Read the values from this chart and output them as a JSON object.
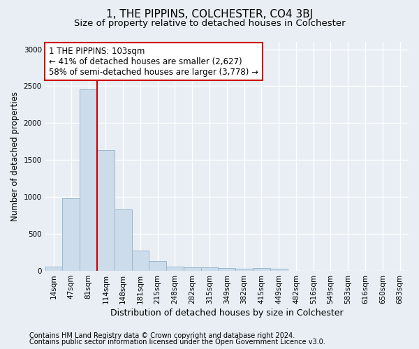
{
  "title": "1, THE PIPPINS, COLCHESTER, CO4 3BJ",
  "subtitle": "Size of property relative to detached houses in Colchester",
  "xlabel": "Distribution of detached houses by size in Colchester",
  "ylabel": "Number of detached properties",
  "bar_labels": [
    "14sqm",
    "47sqm",
    "81sqm",
    "114sqm",
    "148sqm",
    "181sqm",
    "215sqm",
    "248sqm",
    "282sqm",
    "315sqm",
    "349sqm",
    "382sqm",
    "415sqm",
    "449sqm",
    "482sqm",
    "516sqm",
    "549sqm",
    "583sqm",
    "616sqm",
    "650sqm",
    "683sqm"
  ],
  "bar_values": [
    62,
    980,
    2460,
    1640,
    830,
    270,
    130,
    60,
    50,
    50,
    40,
    30,
    40,
    30,
    0,
    5,
    0,
    0,
    0,
    0,
    0
  ],
  "bar_color": "#ccdceb",
  "bar_edge_color": "#9ab8d0",
  "ylim": [
    0,
    3100
  ],
  "yticks": [
    0,
    500,
    1000,
    1500,
    2000,
    2500,
    3000
  ],
  "annotation_box_text": "1 THE PIPPINS: 103sqm\n← 41% of detached houses are smaller (2,627)\n58% of semi-detached houses are larger (3,778) →",
  "annotation_box_color": "#ffffff",
  "annotation_box_edge_color": "#cc0000",
  "vline_color": "#cc0000",
  "footnote1": "Contains HM Land Registry data © Crown copyright and database right 2024.",
  "footnote2": "Contains public sector information licensed under the Open Government Licence v3.0.",
  "background_color": "#e8eef4",
  "plot_bg_color": "#e8eef4",
  "grid_color": "#ffffff",
  "title_fontsize": 11,
  "subtitle_fontsize": 9.5,
  "xlabel_fontsize": 9,
  "ylabel_fontsize": 8.5,
  "tick_fontsize": 7.5,
  "annotation_fontsize": 8.5,
  "footnote_fontsize": 7
}
